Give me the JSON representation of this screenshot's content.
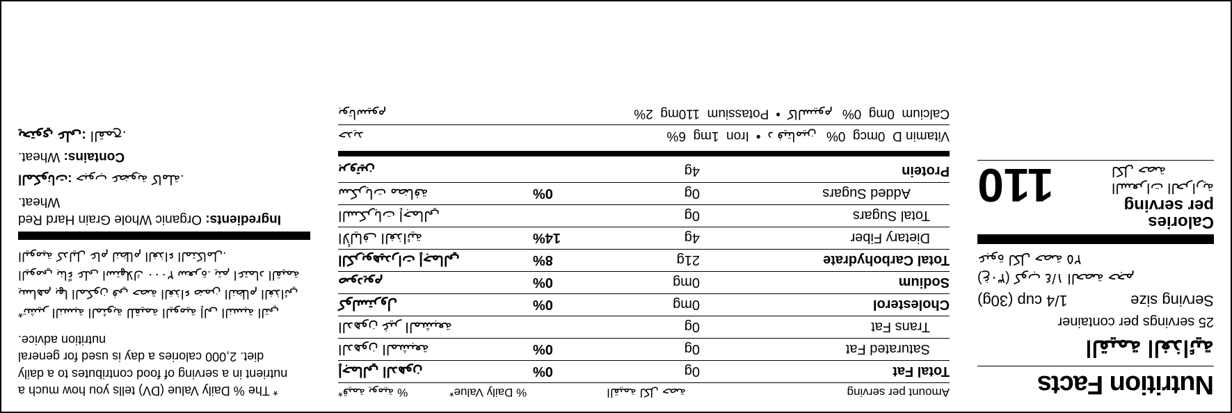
{
  "title_en": "Nutrition Facts",
  "title_ar": "القيمة الغذائية",
  "servings_per_container": "25 servings per container",
  "servings_per_container_ar": "عبوة لكل حصة ٢٥",
  "serving_size_label": "Serving size",
  "serving_size_val": "1/4 cup (30g)",
  "serving_size_ar": "(غ٣٠) كوب ١/٤ الحصة حجم",
  "calories_label_en": "Calories",
  "per_serving_en": "per serving",
  "calories_label_ar": "السعرات الحرارية",
  "per_serving_ar_line": "لكل حصة",
  "calories": "110",
  "hdr_amount_en": "Amount per serving",
  "hdr_amount_ar": "القيمة لكل حصة",
  "hdr_dv_en": "% Daily Value*",
  "hdr_dv_ar": "*قيمة يومية %",
  "rows": [
    {
      "en": "Total Fat",
      "amt": "0g",
      "dv": "0%",
      "ar": "إجمالي الدهون",
      "bold": true,
      "indent": 0
    },
    {
      "en": "Saturated Fat",
      "amt": "0g",
      "dv": "0%",
      "ar": "الدهون المشبعة",
      "bold": false,
      "indent": 1
    },
    {
      "en": "Trans Fat",
      "amt": "0g",
      "dv": "",
      "ar": "الدهون غير المشبعة",
      "bold": false,
      "indent": 1
    },
    {
      "en": "Cholesterol",
      "amt": "0mg",
      "dv": "0%",
      "ar": "كولسترول",
      "bold": true,
      "indent": 0
    },
    {
      "en": "Sodium",
      "amt": "0mg",
      "dv": "0%",
      "ar": "صوديوم",
      "bold": true,
      "indent": 0
    },
    {
      "en": "Total Carbohydrate",
      "amt": "21g",
      "dv": "8%",
      "ar": "الكربوهيدرات إجمالي",
      "bold": true,
      "indent": 0
    },
    {
      "en": "Dietary Fiber",
      "amt": "4g",
      "dv": "14%",
      "ar": "الألياف الغذائية",
      "bold": false,
      "indent": 1
    },
    {
      "en": "Total Sugars",
      "amt": "0g",
      "dv": "",
      "ar": "السكريات إجمالي",
      "bold": false,
      "indent": 1
    },
    {
      "en": "Added Sugars",
      "amt": "0g",
      "dv": "0%",
      "ar": "سكريات مضافة",
      "bold": false,
      "indent": 2
    },
    {
      "en": "Protein",
      "amt": "4g",
      "dv": "",
      "ar": "بروتين",
      "bold": true,
      "indent": 0
    }
  ],
  "vitamins": [
    {
      "a_en": "Vitamin D",
      "a_amt": "0mcg",
      "a_dv": "0%",
      "a_ar": "د فيتامين",
      "b_en": "Iron",
      "b_amt": "1mg",
      "b_dv": "6%",
      "b_ar": "حديد"
    },
    {
      "a_en": "Calcium",
      "a_amt": "0mg",
      "a_dv": "0%",
      "a_ar": "كالسيوم",
      "b_en": "Potassium",
      "b_amt": "110mg",
      "b_dv": "2%",
      "b_ar": "بوتاسيوم"
    }
  ],
  "footnote_en": "* The % Daily Value (DV) tells you how much a nutrient in a serving of food contributes to a daily diet. 2,000 calories a day is used for general nutrition advice.",
  "footnote_ar": "*تشير النسبة المئوية للقيمة اليومية إلى النسبة التي يساهم بها المكون في حصة الغذاء ضمن النظام الغذائي اليومي بناءً على استهلاك ٢٠٠٠ سعرة. يتم اعتماد القيمة اليومية كدليل عام لنظام الغذاء المتكامل.",
  "ingredients_label_en": "Ingredients:",
  "ingredients_en": " Organic Whole Grain Hard Red Wheat.",
  "ingredients_label_ar": "المكونات:",
  "ingredients_ar": " حبوب عضوية كاملة.",
  "contains_label_en": "Contains:",
  "contains_en": " Wheat.",
  "contains_label_ar": "يحتوي على:",
  "contains_ar": " القمح."
}
